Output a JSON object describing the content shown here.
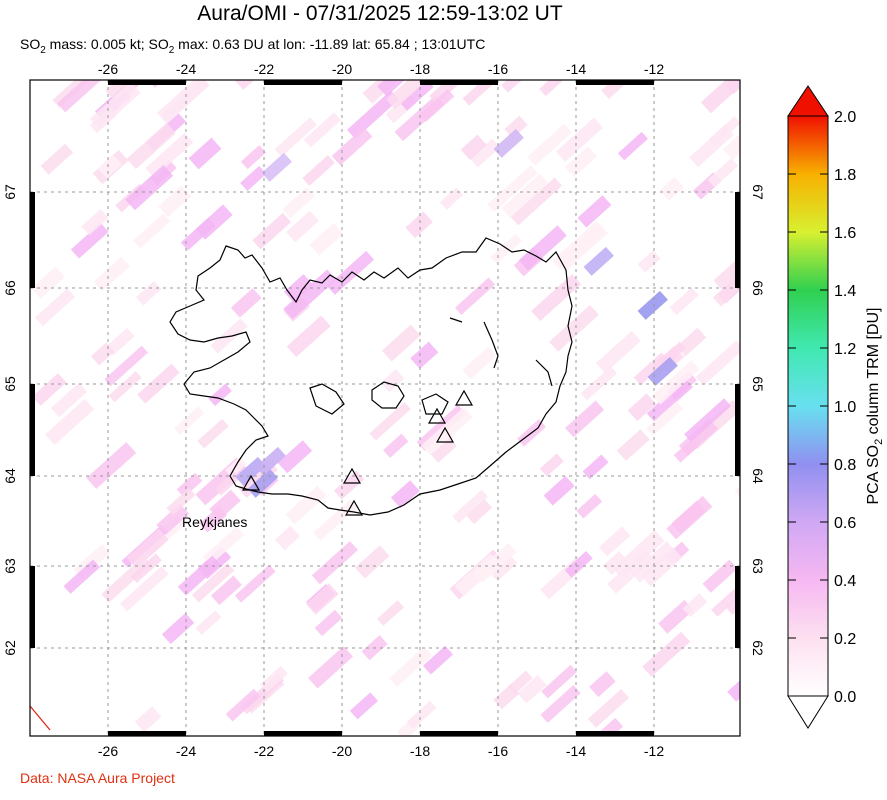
{
  "header": {
    "title": "Aura/OMI - 07/31/2025 12:59-13:02 UT",
    "subtitle_prefix": "SO",
    "subtitle_mid1": " mass: 0.005 kt; SO",
    "subtitle_rest": " max: 0.63 DU at lon: -11.89 lat: 65.84 ; 13:01UTC",
    "sub2": "2"
  },
  "map": {
    "lon_ticks": [
      "-26",
      "-24",
      "-22",
      "-20",
      "-18",
      "-16",
      "-14",
      "-12"
    ],
    "lat_ticks": [
      "67",
      "66",
      "65",
      "64",
      "63",
      "62"
    ],
    "label_reykjanes": "Reykjanes",
    "lon_range": [
      -28.0,
      -10.0
    ],
    "lat_range": [
      61.0,
      68.0
    ]
  },
  "colorbar": {
    "ticks": [
      "0.0",
      "0.2",
      "0.4",
      "0.6",
      "0.8",
      "1.0",
      "1.2",
      "1.4",
      "1.6",
      "1.8",
      "2.0"
    ],
    "label_prefix": "PCA SO",
    "label_sub": "2",
    "label_suffix": " column TRM [DU]",
    "colors": [
      "#ffffff",
      "#fde0f0",
      "#f6b8f2",
      "#d8a8f4",
      "#8f8ff0",
      "#68e0f0",
      "#40e0a0",
      "#30d050",
      "#d8f030",
      "#f8b000",
      "#f01000"
    ]
  },
  "footer": {
    "credit": "Data: NASA Aura Project"
  }
}
